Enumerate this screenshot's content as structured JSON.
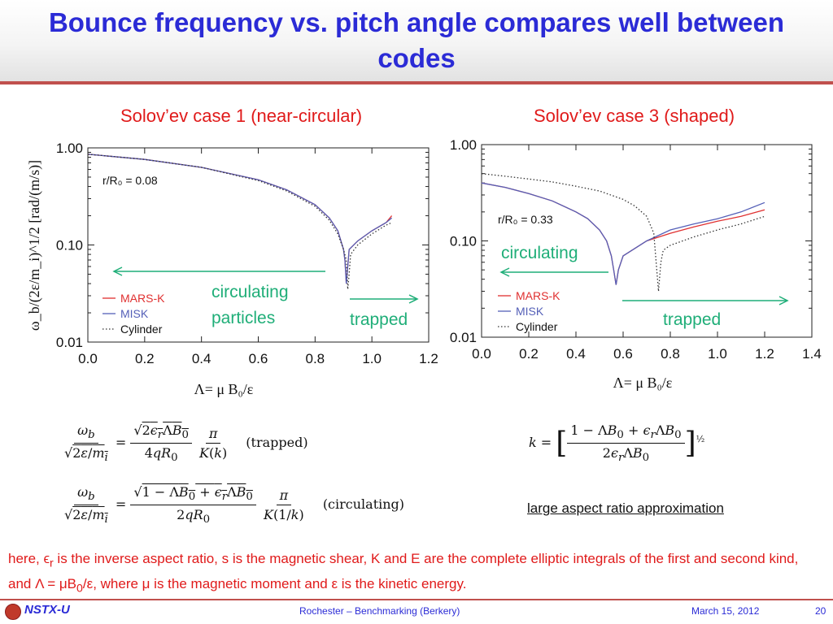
{
  "slide": {
    "title": "Bounce frequency vs. pitch angle compares well between codes",
    "note_html": "here, ϵ<sub>r</sub> is the inverse aspect ratio, s is the magnetic shear, K and E are the complete elliptic integrals of the first and second kind, and Λ = μB<sub>0</sub>/ε, where μ is the magnetic moment and ε is the kinetic energy.",
    "approx_label": "large aspect ratio approximation",
    "equations": {
      "trapped_label": "(trapped)",
      "circulating_label": "(circulating)"
    },
    "footer": {
      "logo": "NSTX-U",
      "center": "Rochester – Benchmarking (Berkery)",
      "date": "March 15, 2012",
      "page": "20"
    }
  },
  "colors": {
    "title": "#2b2bd6",
    "accent": "#c0504d",
    "red_text": "#e01a1a",
    "region": "#1fae78",
    "mars": "#e03030",
    "misk": "#5560b8",
    "cylinder": "#333333"
  },
  "chart_data": [
    {
      "type": "line",
      "title": "Solov’ev case 1 (near-circular)",
      "xlabel": "Λ= μ B₀/ε",
      "ylabel": "ω_b/(2ε/m_i)^1/2 [rad/(m/s)]",
      "xlim": [
        0,
        1.2
      ],
      "ylim": [
        0.01,
        1.0
      ],
      "yscale": "log",
      "xticks": [
        "0.0",
        "0.2",
        "0.4",
        "0.6",
        "0.8",
        "1.0",
        "1.2"
      ],
      "yticks": [
        "1.00",
        "0.10",
        "0.01"
      ],
      "annotation": "r/R₀ = 0.08",
      "regions": {
        "circulating": "circulating particles",
        "trapped": "trapped"
      },
      "legend": [
        "MARS-K",
        "MISK",
        "Cylinder"
      ],
      "series": [
        {
          "name": "MARS-K",
          "x": [
            0.0,
            0.2,
            0.4,
            0.6,
            0.7,
            0.8,
            0.85,
            0.88,
            0.9,
            0.905,
            0.91,
            0.915,
            0.92,
            0.95,
            1.0,
            1.05,
            1.07
          ],
          "y": [
            0.86,
            0.76,
            0.63,
            0.47,
            0.37,
            0.26,
            0.19,
            0.14,
            0.09,
            0.07,
            0.04,
            0.06,
            0.09,
            0.11,
            0.14,
            0.17,
            0.2
          ]
        },
        {
          "name": "MISK",
          "x": [
            0.0,
            0.2,
            0.4,
            0.6,
            0.7,
            0.8,
            0.85,
            0.88,
            0.9,
            0.905,
            0.91,
            0.915,
            0.92,
            0.95,
            1.0,
            1.05,
            1.07
          ],
          "y": [
            0.86,
            0.76,
            0.63,
            0.47,
            0.37,
            0.26,
            0.19,
            0.14,
            0.09,
            0.07,
            0.04,
            0.06,
            0.09,
            0.11,
            0.14,
            0.17,
            0.19
          ]
        },
        {
          "name": "Cylinder",
          "x": [
            0.0,
            0.2,
            0.4,
            0.6,
            0.7,
            0.8,
            0.85,
            0.88,
            0.9,
            0.91,
            0.915,
            0.92,
            0.925,
            0.95,
            1.0,
            1.05,
            1.07
          ],
          "y": [
            0.86,
            0.76,
            0.63,
            0.46,
            0.36,
            0.25,
            0.18,
            0.13,
            0.09,
            0.07,
            0.035,
            0.05,
            0.08,
            0.1,
            0.13,
            0.16,
            0.17
          ]
        }
      ]
    },
    {
      "type": "line",
      "title": "Solov’ev case 3 (shaped)",
      "xlabel": "Λ= μ B₀/ε",
      "ylabel": "",
      "xlim": [
        0,
        1.4
      ],
      "ylim": [
        0.01,
        1.0
      ],
      "yscale": "log",
      "xticks": [
        "0.0",
        "0.2",
        "0.4",
        "0.6",
        "0.8",
        "1.0",
        "1.2",
        "1.4"
      ],
      "yticks": [
        "1.00",
        "0.10",
        "0.01"
      ],
      "annotation": "r/R₀ = 0.33",
      "regions": {
        "circulating": "circulating",
        "trapped": "trapped"
      },
      "legend": [
        "MARS-K",
        "MISK",
        "Cylinder"
      ],
      "series": [
        {
          "name": "MARS-K",
          "x": [
            0.0,
            0.1,
            0.2,
            0.3,
            0.4,
            0.45,
            0.5,
            0.53,
            0.55,
            0.56,
            0.57,
            0.58,
            0.6,
            0.7,
            0.8,
            0.9,
            1.0,
            1.1,
            1.2
          ],
          "y": [
            0.4,
            0.36,
            0.31,
            0.26,
            0.2,
            0.17,
            0.13,
            0.1,
            0.07,
            0.05,
            0.035,
            0.05,
            0.07,
            0.1,
            0.12,
            0.14,
            0.16,
            0.18,
            0.21
          ]
        },
        {
          "name": "MISK",
          "x": [
            0.0,
            0.1,
            0.2,
            0.3,
            0.4,
            0.45,
            0.5,
            0.53,
            0.55,
            0.56,
            0.57,
            0.58,
            0.6,
            0.7,
            0.8,
            0.9,
            1.0,
            1.1,
            1.2
          ],
          "y": [
            0.4,
            0.36,
            0.31,
            0.26,
            0.2,
            0.17,
            0.13,
            0.1,
            0.07,
            0.05,
            0.035,
            0.05,
            0.07,
            0.1,
            0.13,
            0.15,
            0.17,
            0.2,
            0.25
          ]
        },
        {
          "name": "Cylinder",
          "x": [
            0.0,
            0.1,
            0.2,
            0.3,
            0.4,
            0.5,
            0.6,
            0.65,
            0.7,
            0.73,
            0.75,
            0.76,
            0.77,
            0.8,
            0.9,
            1.0,
            1.1,
            1.2
          ],
          "y": [
            0.5,
            0.47,
            0.44,
            0.41,
            0.37,
            0.33,
            0.27,
            0.23,
            0.18,
            0.12,
            0.03,
            0.06,
            0.08,
            0.09,
            0.11,
            0.13,
            0.15,
            0.18
          ]
        }
      ]
    }
  ]
}
